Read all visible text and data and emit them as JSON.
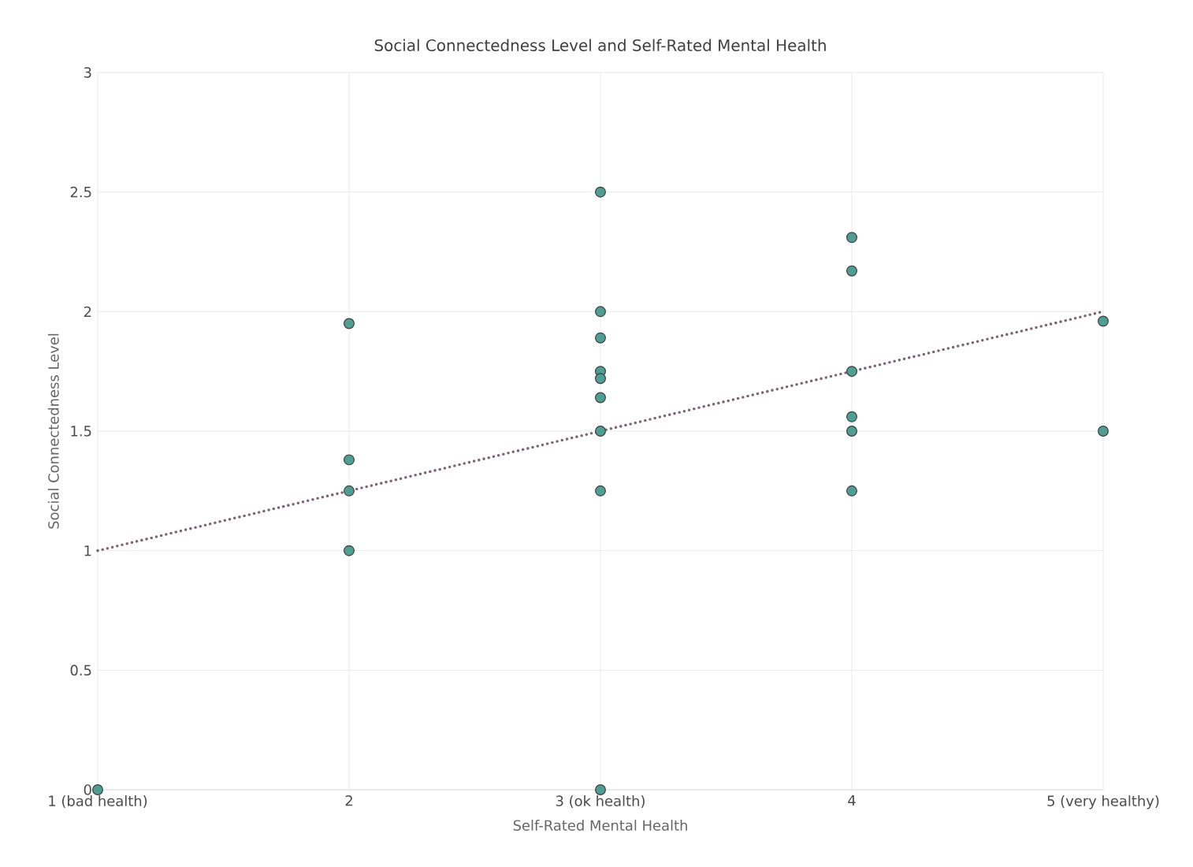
{
  "chart_data": {
    "type": "scatter",
    "title": "Social Connectedness Level and Self-Rated Mental Health",
    "xlabel": "Self-Rated Mental Health",
    "ylabel": "Social Connectedness Level",
    "xlim": [
      1,
      5
    ],
    "ylim": [
      0,
      3
    ],
    "xticks": [
      {
        "value": 1,
        "label": "1 (bad health)"
      },
      2,
      {
        "value": 3,
        "label": "3 (ok health)"
      },
      4,
      {
        "value": 5,
        "label": "5 (very healthy)"
      }
    ],
    "yticks": [
      0,
      0.5,
      1,
      1.5,
      2,
      2.5,
      3
    ],
    "grid": true,
    "series": [
      {
        "color": "#4f9e94",
        "marker": "circle",
        "x": [
          1,
          2,
          2,
          2,
          2,
          3,
          3,
          3,
          3,
          3,
          3,
          3,
          3,
          3,
          4,
          4,
          4,
          4,
          4,
          4,
          5,
          5
        ],
        "values": [
          0,
          1.95,
          1.38,
          1.25,
          1.0,
          2.5,
          2.0,
          1.89,
          1.75,
          1.72,
          1.64,
          1.5,
          1.25,
          0,
          2.31,
          2.17,
          1.75,
          1.56,
          1.5,
          1.25,
          1.96,
          1.5
        ]
      },
      {
        "type": "line",
        "color": "#7d6470",
        "line_style": "dotted",
        "marker": "none",
        "x": [
          1,
          5
        ],
        "values": [
          1,
          2
        ]
      }
    ]
  }
}
